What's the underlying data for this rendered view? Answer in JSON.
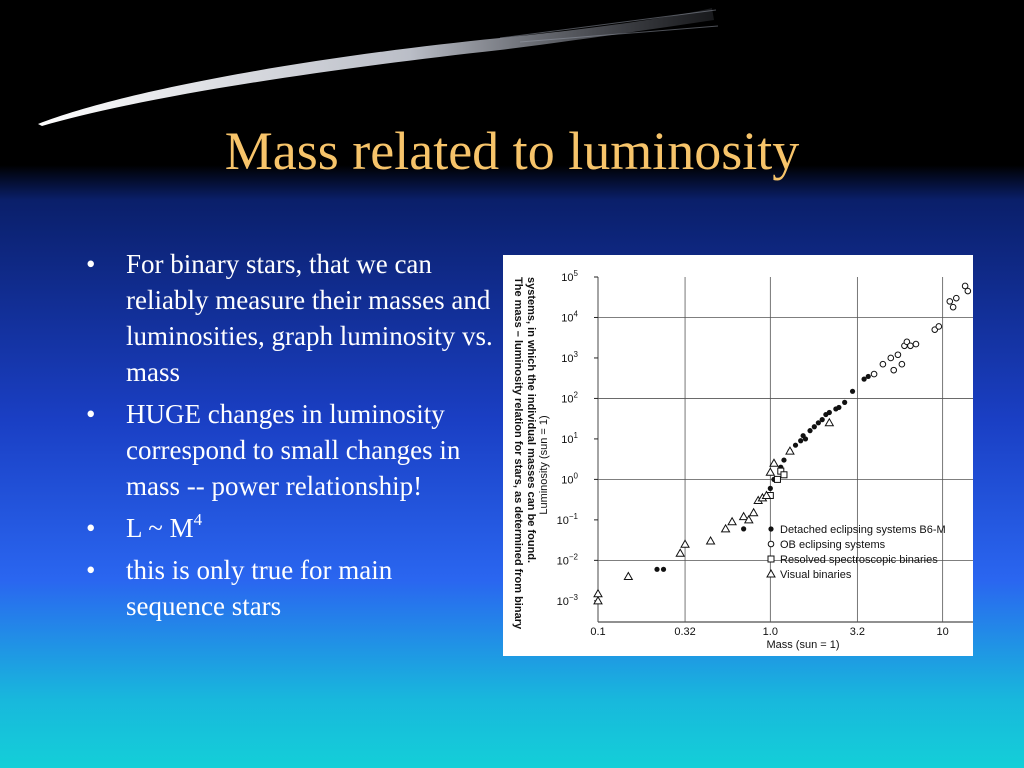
{
  "slide": {
    "title": "Mass related to luminosity",
    "bullet_glyph": "•",
    "bullets": [
      {
        "text": "For binary stars, that we can reliably measure their masses and luminosities, graph luminosity vs. mass"
      },
      {
        "text": "HUGE changes in luminosity correspond to small changes in mass -- power relationship!"
      },
      {
        "text": "L ~ M",
        "sup": "4"
      },
      {
        "text": "this is only true for main sequence stars"
      }
    ],
    "colors": {
      "title": "#f7c46a",
      "text": "#ffffff"
    }
  },
  "chart_data": {
    "type": "scatter",
    "caption_lines": [
      "The mass – luminosity relation for stars, as determined from binary",
      "systems, in which the individual masses can be found."
    ],
    "xlabel": "Mass (sun = 1)",
    "ylabel": "Luminosity (sun = 1)",
    "x_scale": "log",
    "y_scale": "log",
    "xlim": [
      0.1,
      15
    ],
    "ylim": [
      0.0003,
      100000
    ],
    "x_ticks": [
      {
        "value": 0.1,
        "label": "0.1"
      },
      {
        "value": 0.32,
        "label": "0.32"
      },
      {
        "value": 1.0,
        "label": "1.0"
      },
      {
        "value": 3.2,
        "label": "3.2"
      },
      {
        "value": 10,
        "label": "10"
      }
    ],
    "y_ticks": [
      {
        "value": 0.001,
        "base": "10",
        "exp": "−3"
      },
      {
        "value": 0.01,
        "base": "10",
        "exp": "−2"
      },
      {
        "value": 0.1,
        "base": "10",
        "exp": "−1"
      },
      {
        "value": 1,
        "base": "10",
        "exp": "0"
      },
      {
        "value": 10,
        "base": "10",
        "exp": "1"
      },
      {
        "value": 100,
        "base": "10",
        "exp": "2"
      },
      {
        "value": 1000,
        "base": "10",
        "exp": "3"
      },
      {
        "value": 10000,
        "base": "10",
        "exp": "4"
      },
      {
        "value": 100000,
        "base": "10",
        "exp": "5"
      }
    ],
    "grid": true,
    "legend_position": "lower-right",
    "series": [
      {
        "name": "Detached eclipsing systems B6-M",
        "marker": "filled-circle",
        "points": [
          [
            0.22,
            0.006
          ],
          [
            0.24,
            0.006
          ],
          [
            0.7,
            0.06
          ],
          [
            1.0,
            0.6
          ],
          [
            1.05,
            1.0
          ],
          [
            1.15,
            2.0
          ],
          [
            1.2,
            3.0
          ],
          [
            1.3,
            5.0
          ],
          [
            1.4,
            7.0
          ],
          [
            1.5,
            9.0
          ],
          [
            1.55,
            12.0
          ],
          [
            1.6,
            10.0
          ],
          [
            1.7,
            16.0
          ],
          [
            1.8,
            20.0
          ],
          [
            1.9,
            25.0
          ],
          [
            2.0,
            30.0
          ],
          [
            2.1,
            40.0
          ],
          [
            2.2,
            45.0
          ],
          [
            2.4,
            55.0
          ],
          [
            2.5,
            60.0
          ],
          [
            2.7,
            80.0
          ],
          [
            3.0,
            150.0
          ],
          [
            3.5,
            300.0
          ],
          [
            3.7,
            350.0
          ]
        ]
      },
      {
        "name": "OB eclipsing systems",
        "marker": "open-circle",
        "points": [
          [
            4.0,
            400.0
          ],
          [
            4.5,
            700.0
          ],
          [
            5.0,
            1000.0
          ],
          [
            5.2,
            500.0
          ],
          [
            5.5,
            1200.0
          ],
          [
            5.8,
            700.0
          ],
          [
            6.0,
            2000.0
          ],
          [
            6.2,
            2500.0
          ],
          [
            6.5,
            2000.0
          ],
          [
            7.0,
            2200.0
          ],
          [
            9.0,
            5000.0
          ],
          [
            9.5,
            6000.0
          ],
          [
            11.0,
            25000.0
          ],
          [
            11.5,
            18000.0
          ],
          [
            12.0,
            30000.0
          ],
          [
            13.5,
            60000.0
          ],
          [
            14.0,
            45000.0
          ]
        ]
      },
      {
        "name": "Resolved spectroscopic binaries",
        "marker": "open-square",
        "points": [
          [
            1.0,
            0.4
          ],
          [
            1.1,
            1.0
          ],
          [
            1.15,
            1.6
          ],
          [
            1.2,
            1.3
          ]
        ]
      },
      {
        "name": "Visual binaries",
        "marker": "open-triangle",
        "points": [
          [
            0.1,
            0.001
          ],
          [
            0.1,
            0.0015
          ],
          [
            0.15,
            0.004
          ],
          [
            0.3,
            0.015
          ],
          [
            0.32,
            0.025
          ],
          [
            0.45,
            0.03
          ],
          [
            0.55,
            0.06
          ],
          [
            0.6,
            0.09
          ],
          [
            0.7,
            0.12
          ],
          [
            0.75,
            0.1
          ],
          [
            0.8,
            0.15
          ],
          [
            0.85,
            0.3
          ],
          [
            0.9,
            0.35
          ],
          [
            0.95,
            0.4
          ],
          [
            1.0,
            1.5
          ],
          [
            1.05,
            2.5
          ],
          [
            1.3,
            5.0
          ],
          [
            2.2,
            25.0
          ]
        ]
      }
    ]
  }
}
